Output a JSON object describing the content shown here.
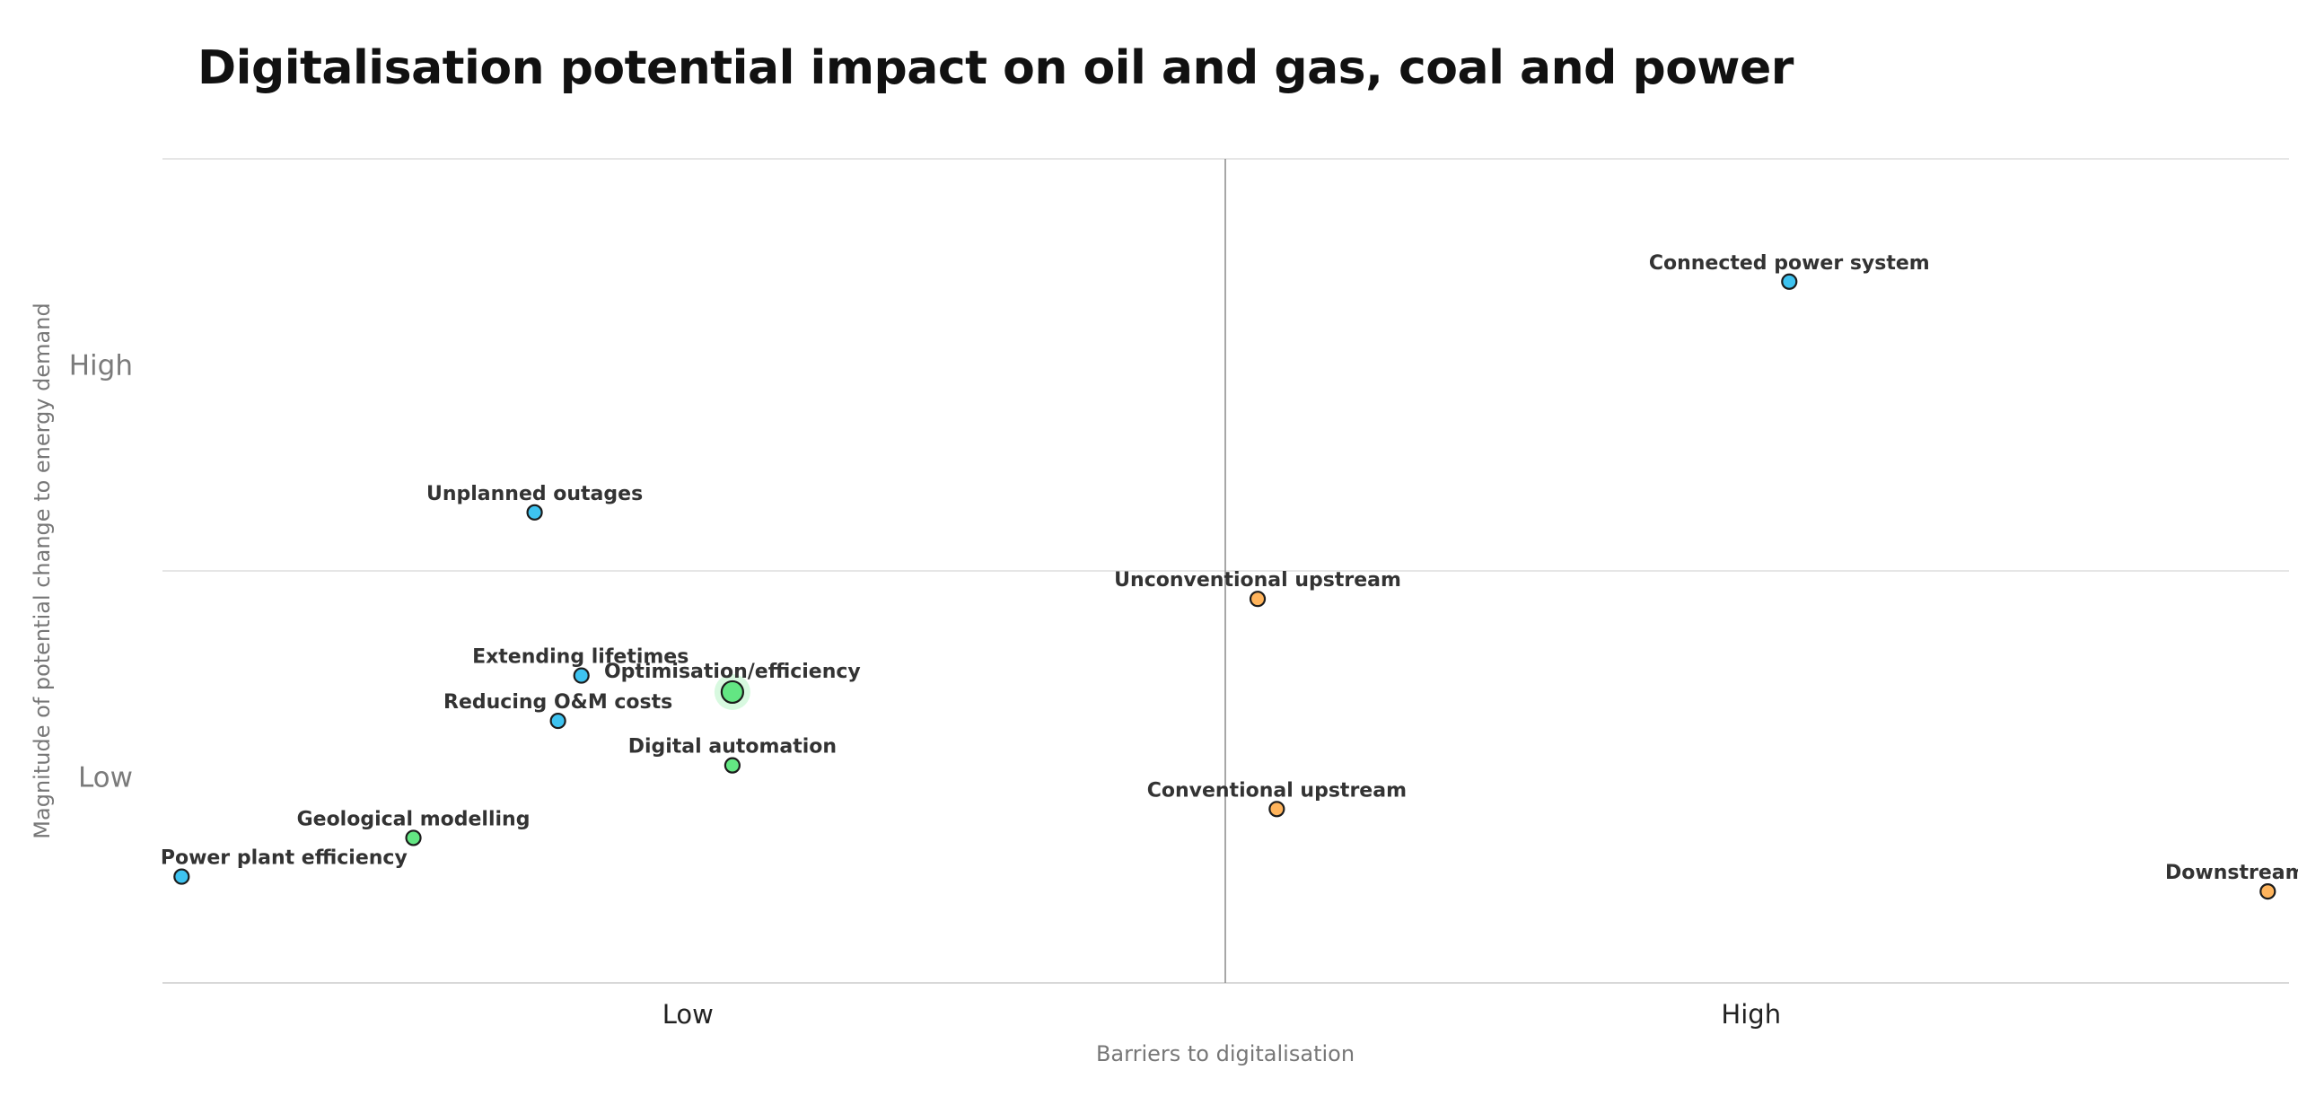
{
  "chart_data": {
    "type": "scatter",
    "title": "Digitalisation potential impact on oil and gas, coal and power",
    "xlabel": "Barriers to digitalisation",
    "ylabel": "Magnitude of potential change to energy demand",
    "x_ticks": [
      {
        "label": "Low",
        "value": 0.25
      },
      {
        "label": "High",
        "value": 0.75
      }
    ],
    "y_ticks": [
      {
        "label": "High",
        "value": 0.75
      },
      {
        "label": "Low",
        "value": 0.25
      }
    ],
    "xlim": [
      0,
      1
    ],
    "ylim": [
      0,
      1
    ],
    "grid": "horizontal",
    "series": [
      {
        "color": "#3ec3f0",
        "points": [
          {
            "label": "Connected power system",
            "x": 0.765,
            "y": 0.851
          },
          {
            "label": "Unplanned outages",
            "x": 0.175,
            "y": 0.571
          },
          {
            "label": "Extending lifetimes",
            "x": 0.197,
            "y": 0.373
          },
          {
            "label": "Reducing O&M costs",
            "x": 0.186,
            "y": 0.318
          },
          {
            "label": "Power plant efficiency",
            "x": 0.009,
            "y": 0.129
          }
        ]
      },
      {
        "color": "#63e683",
        "points": [
          {
            "label": "Optimisation/efficiency",
            "x": 0.268,
            "y": 0.353,
            "highlight": true
          },
          {
            "label": "Digital automation",
            "x": 0.268,
            "y": 0.264
          },
          {
            "label": "Geological modelling",
            "x": 0.118,
            "y": 0.176
          }
        ]
      },
      {
        "color": "#ffb45c",
        "points": [
          {
            "label": "Unconventional upstream",
            "x": 0.515,
            "y": 0.466
          },
          {
            "label": "Conventional upstream",
            "x": 0.524,
            "y": 0.211
          },
          {
            "label": "Downstream",
            "x": 0.99,
            "y": 0.111
          }
        ]
      }
    ]
  }
}
